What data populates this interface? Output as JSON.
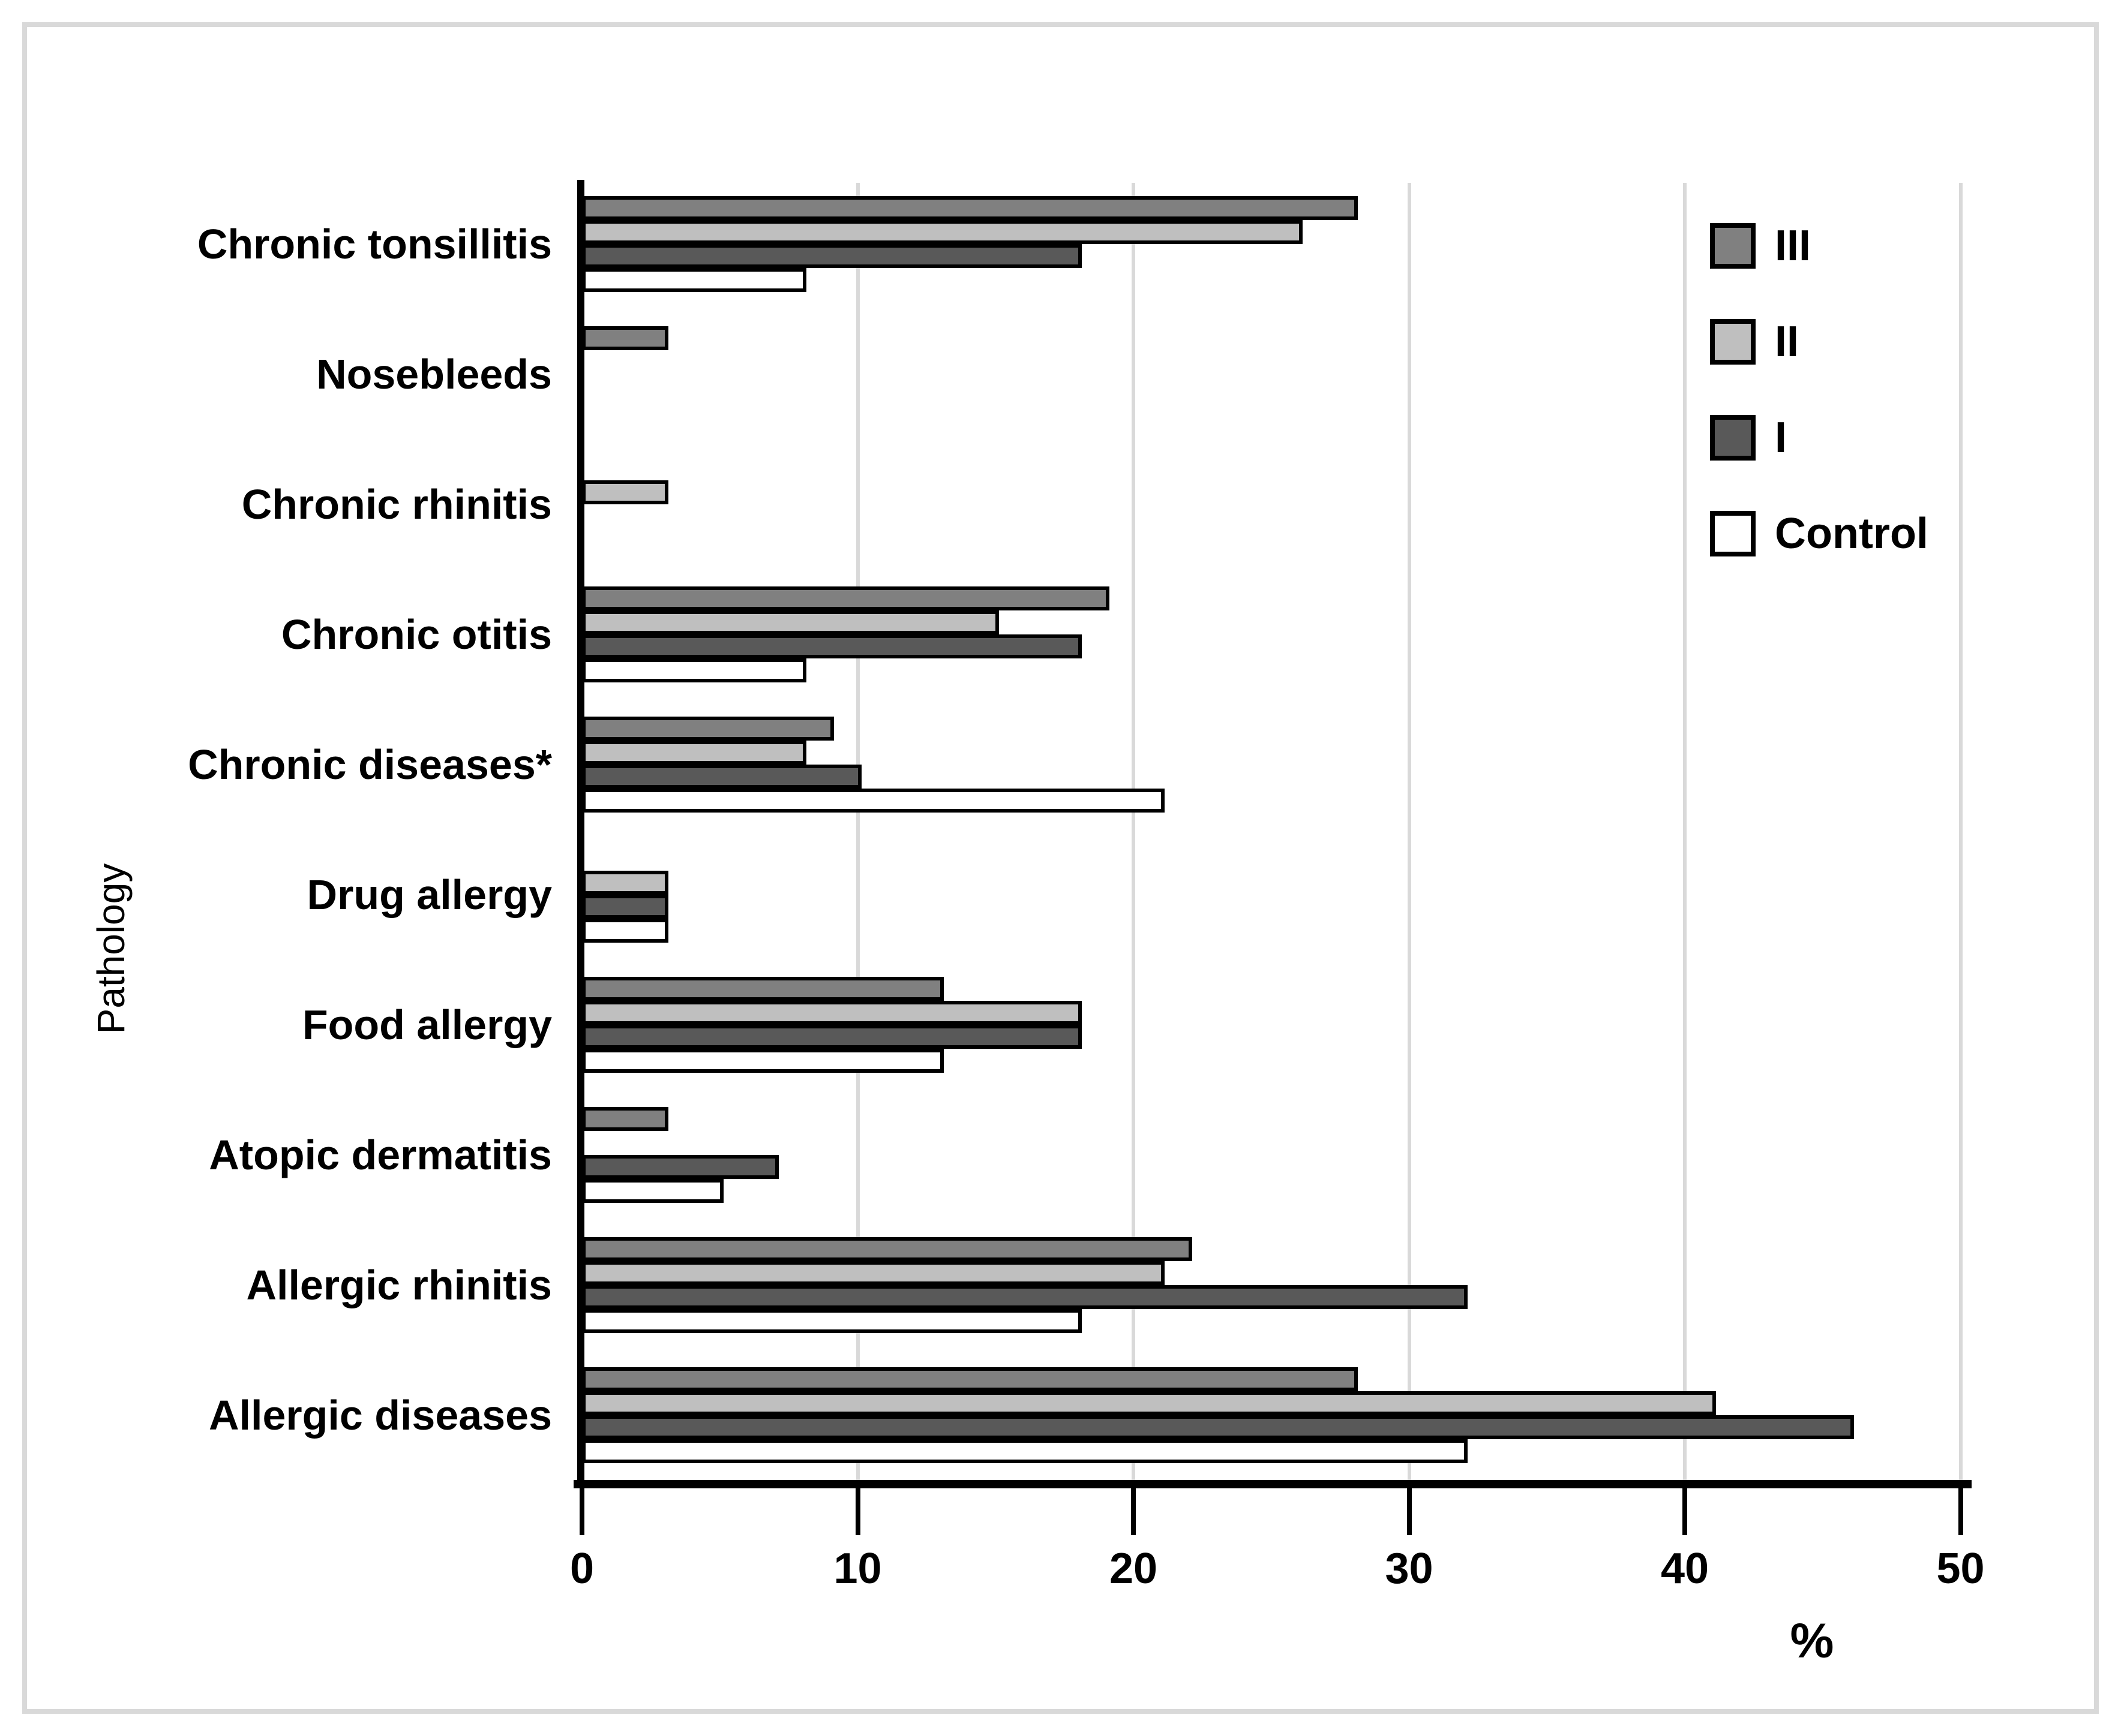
{
  "chart_data": {
    "type": "bar",
    "orientation": "horizontal",
    "title": "",
    "xlabel": "%",
    "ylabel": "Pathology",
    "xlim": [
      0,
      50
    ],
    "x_ticks": [
      0,
      10,
      20,
      30,
      40,
      50
    ],
    "grid": true,
    "legend_position": "top-right",
    "bar_outline_color": "#000000",
    "gridline_color": "#d9d9d9",
    "categories": [
      "Chronic tonsillitis",
      "Nosebleeds",
      "Chronic rhinitis",
      "Chronic otitis",
      "Chronic diseases*",
      "Drug allergy",
      "Food allergy",
      "Atopic dermatitis",
      "Allergic rhinitis",
      "Allergic diseases"
    ],
    "series": [
      {
        "name": "III",
        "color": "#808080",
        "values": [
          28,
          3,
          0,
          19,
          9,
          0,
          13,
          3,
          22,
          28
        ]
      },
      {
        "name": "II",
        "color": "#bfbfbf",
        "values": [
          26,
          0,
          3,
          15,
          8,
          3,
          18,
          0,
          21,
          41
        ]
      },
      {
        "name": "I",
        "color": "#595959",
        "values": [
          18,
          0,
          0,
          18,
          10,
          3,
          18,
          7,
          32,
          46
        ]
      },
      {
        "name": "Control",
        "color": "#ffffff",
        "values": [
          8,
          0,
          0,
          8,
          21,
          3,
          13,
          5,
          18,
          32
        ]
      }
    ]
  }
}
